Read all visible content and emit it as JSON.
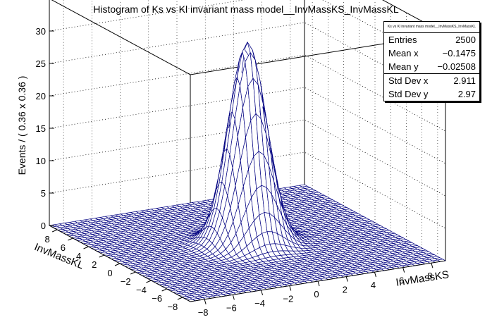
{
  "chart_data": {
    "type": "lego-surface-3d",
    "title": "Histogram of Ks vs Kl invariant mass model__InvMassKS_InvMassKL",
    "xlabel": "InvMassKS",
    "ylabel": "InvMassKL",
    "zlabel": "Events / ( 0.36 x 0.36 )",
    "xlim": [
      -9,
      9
    ],
    "ylim": [
      -9,
      9
    ],
    "zlim": [
      0,
      35
    ],
    "x_ticks": [
      "−8",
      "−6",
      "−4",
      "−2",
      "0",
      "2",
      "4",
      "6",
      "8"
    ],
    "y_ticks": [
      "8",
      "6",
      "4",
      "2",
      "0",
      "−2",
      "−4",
      "−6",
      "−8"
    ],
    "z_ticks": [
      "0",
      "5",
      "10",
      "15",
      "20",
      "25",
      "30"
    ],
    "peak": {
      "x": 0,
      "y": 0,
      "z": 31,
      "sigma": 1.2
    },
    "mesh_color": "#000080",
    "grid": true
  },
  "stats_box": {
    "title": "Ks vs Kl invariant mass model__InvMassKS_InvMassKL",
    "rows": [
      {
        "label": "Entries",
        "value": "2500"
      },
      {
        "label": "Mean x",
        "value": "−0.1475"
      },
      {
        "label": "Mean y",
        "value": "−0.02508"
      },
      {
        "label": "Std Dev x",
        "value": "2.911"
      },
      {
        "label": "Std Dev y",
        "value": "2.97"
      }
    ]
  }
}
